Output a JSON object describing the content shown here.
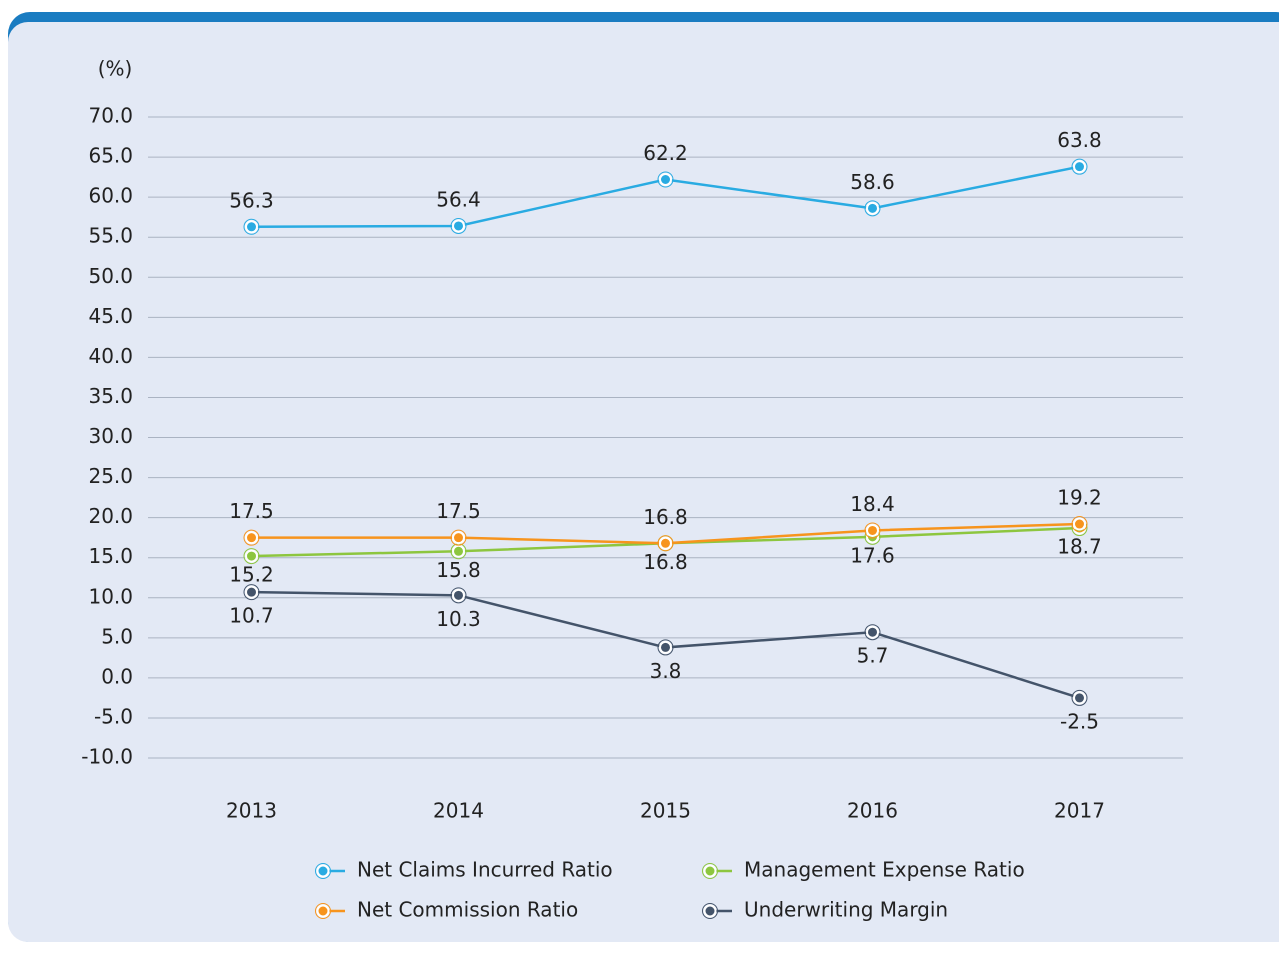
{
  "chart_data": {
    "type": "line",
    "y_label": "(%)",
    "categories": [
      "2013",
      "2014",
      "2015",
      "2016",
      "2017"
    ],
    "series": [
      {
        "name": "Net Claims Incurred Ratio",
        "color": "#29abe2",
        "values": [
          56.3,
          56.4,
          62.2,
          58.6,
          63.8
        ]
      },
      {
        "name": "Management Expense Ratio",
        "color": "#8dc63f",
        "values": [
          15.2,
          15.8,
          16.8,
          17.6,
          18.7
        ]
      },
      {
        "name": "Net Commission Ratio",
        "color": "#f7941d",
        "values": [
          17.5,
          17.5,
          16.8,
          18.4,
          19.2
        ]
      },
      {
        "name": "Underwriting Margin",
        "color": "#44546a",
        "values": [
          10.7,
          10.3,
          3.8,
          5.7,
          -2.5
        ]
      }
    ],
    "ylim": [
      -10,
      70
    ],
    "yticks": [
      {
        "value": -10,
        "label": "-10.0"
      },
      {
        "value": -5,
        "label": "-5.0"
      },
      {
        "value": 0,
        "label": "0.0"
      },
      {
        "value": 5,
        "label": "5.0"
      },
      {
        "value": 10,
        "label": "10.0"
      },
      {
        "value": 15,
        "label": "15.0"
      },
      {
        "value": 20,
        "label": "20.0"
      },
      {
        "value": 25,
        "label": "25.0"
      },
      {
        "value": 30,
        "label": "30.0"
      },
      {
        "value": 35,
        "label": "35.0"
      },
      {
        "value": 40,
        "label": "40.0"
      },
      {
        "value": 45,
        "label": "45.0"
      },
      {
        "value": 50,
        "label": "50.0"
      },
      {
        "value": 55,
        "label": "55.0"
      },
      {
        "value": 60,
        "label": "60.0"
      },
      {
        "value": 65,
        "label": "65.0"
      },
      {
        "value": 70,
        "label": "70.0"
      }
    ],
    "grid": true
  }
}
